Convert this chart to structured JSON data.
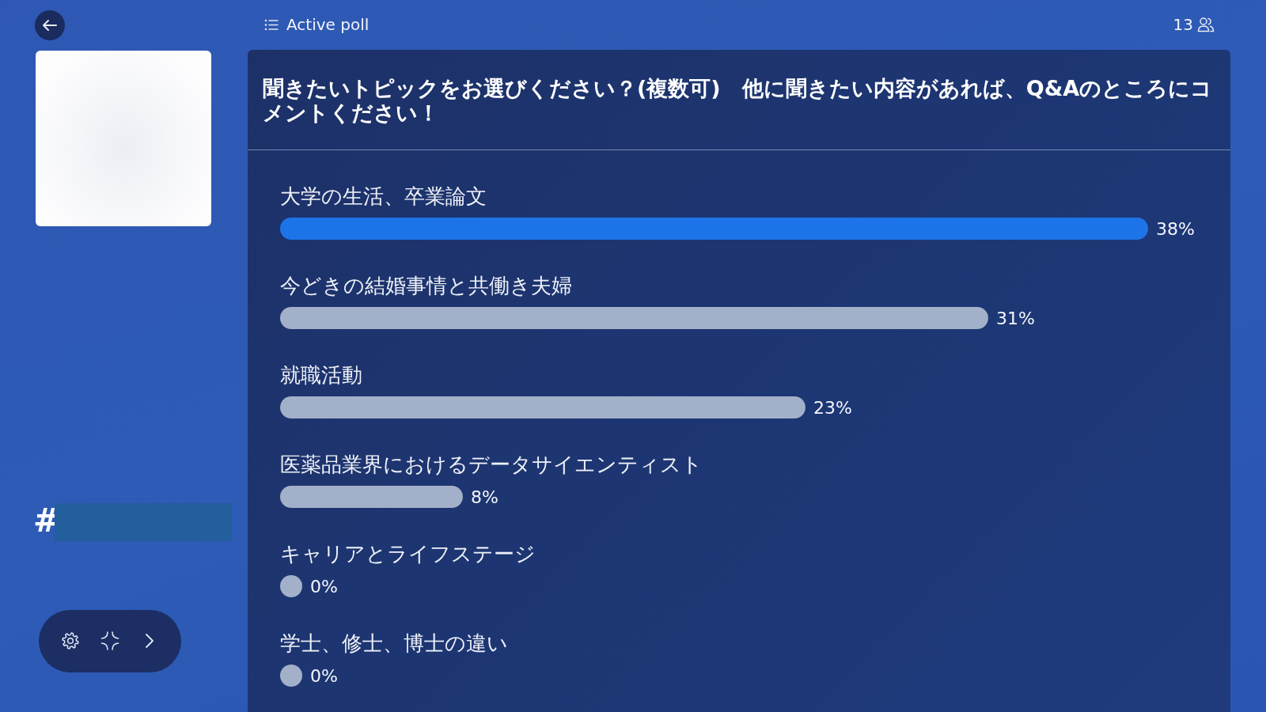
{
  "chart_data": {
    "type": "bar",
    "orientation": "horizontal",
    "title": "聞きたいトピックをお選びください？(複数可)　他に聞きたい内容があれば、Q&Aのところにコメントください！",
    "categories": [
      "大学の生活、卒業論文",
      "今どきの結婚事情と共働き夫婦",
      "就職活動",
      "医薬品業界におけるデータサイエンティスト",
      "キャリアとライフステージ",
      "学士、修士、博士の違い"
    ],
    "values": [
      38,
      31,
      23,
      8,
      0,
      0
    ],
    "colors": [
      "#1d74e8",
      "#a3b0c9",
      "#a3b0c9",
      "#a3b0c9",
      "#a3b0c9",
      "#a3b0c9"
    ],
    "value_labels": [
      "38%",
      "31%",
      "23%",
      "8%",
      "0%",
      "0%"
    ],
    "annotations": [
      "Active poll",
      "13",
      "#"
    ]
  }
}
